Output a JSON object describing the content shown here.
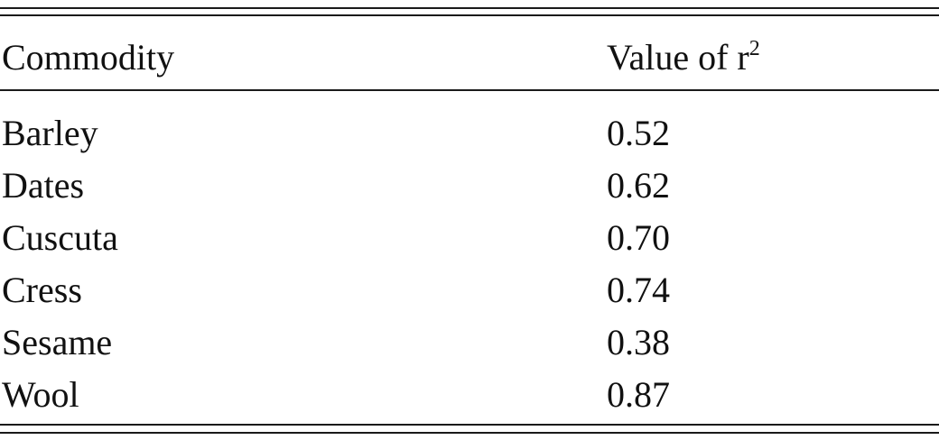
{
  "table": {
    "headers": {
      "commodity": "Commodity",
      "value_prefix": "Value of r",
      "value_superscript": "2"
    },
    "rows": [
      {
        "commodity": "Barley",
        "value": "0.52"
      },
      {
        "commodity": "Dates",
        "value": "0.62"
      },
      {
        "commodity": "Cuscuta",
        "value": "0.70"
      },
      {
        "commodity": "Cress",
        "value": "0.74"
      },
      {
        "commodity": "Sesame",
        "value": "0.38"
      },
      {
        "commodity": "Wool",
        "value": "0.87"
      }
    ]
  }
}
